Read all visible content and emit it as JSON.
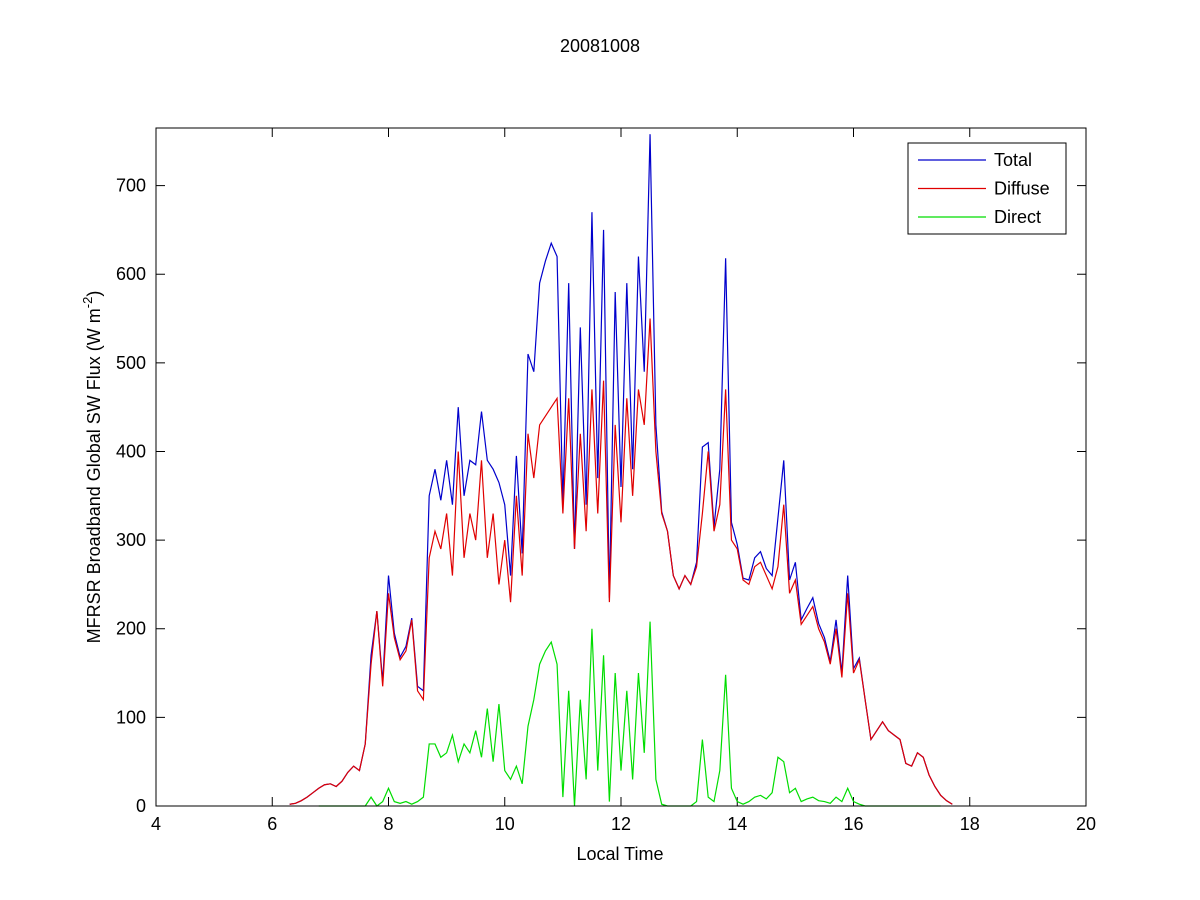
{
  "chart_data": {
    "type": "line",
    "title": "20081008",
    "xlabel": "Local Time",
    "ylabel": {
      "text": "MFRSR Broadband Global SW Flux (W m",
      "superscript": "-2",
      "suffix": ")"
    },
    "xlim": [
      4,
      20
    ],
    "xticks": [
      4,
      6,
      8,
      10,
      12,
      14,
      16,
      18,
      20
    ],
    "ylim": [
      0,
      765
    ],
    "yticks": [
      0,
      100,
      200,
      300,
      400,
      500,
      600,
      700
    ],
    "legend": "top-right",
    "grid": false,
    "x": [
      6.3,
      6.4,
      6.5,
      6.6,
      6.7,
      6.8,
      6.9,
      7.0,
      7.1,
      7.2,
      7.3,
      7.4,
      7.5,
      7.6,
      7.7,
      7.8,
      7.9,
      8.0,
      8.1,
      8.2,
      8.3,
      8.4,
      8.5,
      8.6,
      8.7,
      8.8,
      8.9,
      9.0,
      9.1,
      9.2,
      9.3,
      9.4,
      9.5,
      9.6,
      9.7,
      9.8,
      9.9,
      10.0,
      10.1,
      10.2,
      10.3,
      10.4,
      10.5,
      10.6,
      10.7,
      10.8,
      10.9,
      11.0,
      11.1,
      11.2,
      11.3,
      11.4,
      11.5,
      11.6,
      11.7,
      11.8,
      11.9,
      12.0,
      12.1,
      12.2,
      12.3,
      12.4,
      12.5,
      12.6,
      12.7,
      12.8,
      12.9,
      13.0,
      13.1,
      13.2,
      13.3,
      13.4,
      13.5,
      13.6,
      13.7,
      13.8,
      13.9,
      14.0,
      14.1,
      14.2,
      14.3,
      14.4,
      14.5,
      14.6,
      14.7,
      14.8,
      14.9,
      15.0,
      15.1,
      15.2,
      15.3,
      15.4,
      15.5,
      15.6,
      15.7,
      15.8,
      15.9,
      16.0,
      16.1,
      16.2,
      16.3,
      16.4,
      16.5,
      16.6,
      16.7,
      16.8,
      16.9,
      17.0,
      17.1,
      17.2,
      17.3,
      17.4,
      17.5,
      17.6,
      17.7
    ],
    "series": [
      {
        "name": "Total",
        "color": "#0000cc",
        "values": [
          2,
          3,
          6,
          10,
          15,
          20,
          24,
          25,
          22,
          28,
          38,
          45,
          40,
          70,
          170,
          220,
          140,
          260,
          195,
          168,
          180,
          212,
          135,
          130,
          350,
          380,
          345,
          390,
          340,
          450,
          350,
          390,
          385,
          445,
          390,
          380,
          365,
          340,
          260,
          395,
          285,
          510,
          490,
          590,
          615,
          635,
          620,
          340,
          590,
          290,
          540,
          340,
          670,
          370,
          650,
          235,
          580,
          360,
          590,
          380,
          620,
          490,
          758,
          430,
          332,
          310,
          260,
          245,
          260,
          250,
          275,
          405,
          410,
          315,
          380,
          618,
          320,
          295,
          257,
          255,
          280,
          287,
          268,
          260,
          325,
          390,
          255,
          275,
          210,
          223,
          235,
          206,
          190,
          163,
          210,
          150,
          260,
          155,
          167,
          120,
          75,
          85,
          95,
          85,
          80,
          75,
          48,
          45,
          60,
          55,
          35,
          22,
          12,
          6,
          2
        ]
      },
      {
        "name": "Diffuse",
        "color": "#e00000",
        "values": [
          2,
          3,
          6,
          10,
          15,
          20,
          24,
          25,
          22,
          28,
          38,
          45,
          40,
          70,
          160,
          220,
          135,
          240,
          190,
          165,
          175,
          210,
          130,
          120,
          280,
          310,
          290,
          330,
          260,
          400,
          280,
          330,
          300,
          390,
          280,
          330,
          250,
          300,
          230,
          350,
          260,
          420,
          370,
          430,
          440,
          450,
          460,
          330,
          460,
          290,
          420,
          310,
          470,
          330,
          480,
          230,
          430,
          320,
          460,
          350,
          470,
          430,
          550,
          400,
          330,
          310,
          260,
          245,
          260,
          250,
          270,
          330,
          400,
          310,
          340,
          470,
          300,
          290,
          255,
          250,
          270,
          275,
          260,
          245,
          270,
          340,
          240,
          255,
          205,
          215,
          225,
          200,
          185,
          160,
          200,
          145,
          240,
          150,
          165,
          120,
          75,
          85,
          95,
          85,
          80,
          75,
          48,
          45,
          60,
          55,
          35,
          22,
          12,
          6,
          2
        ]
      },
      {
        "name": "Direct",
        "color": "#00dd00",
        "values": [
          null,
          null,
          null,
          null,
          null,
          0,
          0,
          0,
          0,
          0,
          0,
          0,
          0,
          0,
          10,
          0,
          5,
          20,
          5,
          3,
          5,
          2,
          5,
          10,
          70,
          70,
          55,
          60,
          80,
          50,
          70,
          60,
          85,
          55,
          110,
          50,
          115,
          40,
          30,
          45,
          25,
          90,
          120,
          160,
          175,
          185,
          160,
          10,
          130,
          0,
          120,
          30,
          200,
          40,
          170,
          5,
          150,
          40,
          130,
          30,
          150,
          60,
          208,
          30,
          2,
          0,
          0,
          0,
          0,
          0,
          5,
          75,
          10,
          5,
          40,
          148,
          20,
          5,
          2,
          5,
          10,
          12,
          8,
          15,
          55,
          50,
          15,
          20,
          5,
          8,
          10,
          6,
          5,
          3,
          10,
          5,
          20,
          5,
          2,
          0,
          0,
          0,
          0,
          0,
          0,
          0,
          0,
          0,
          0,
          0,
          0,
          0,
          0,
          null,
          null
        ]
      }
    ]
  }
}
